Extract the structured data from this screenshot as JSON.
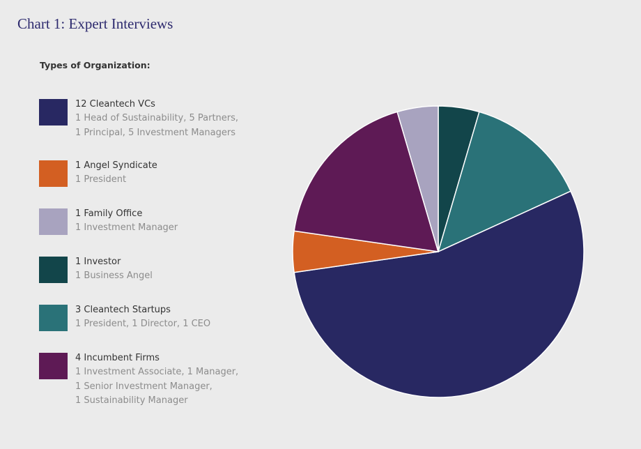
{
  "chart_data": {
    "type": "pie",
    "title": "Chart 1: Expert Interviews",
    "legend_title": "Types of Organization:",
    "legend_placement": "left",
    "start_angle_deg": 0,
    "direction": "clockwise",
    "slices": [
      {
        "label": "1 Investor",
        "value": 1,
        "details": [
          "1 Business Angel"
        ],
        "color": "#12454a"
      },
      {
        "label": "3 Cleantech Startups",
        "value": 3,
        "details": [
          "1 President, 1 Director, 1 CEO"
        ],
        "color": "#2a7278"
      },
      {
        "label": "12 Cleantech VCs",
        "value": 12,
        "details": [
          "1 Head of Sustainability, 5 Partners,",
          "1 Principal, 5 Investment Managers"
        ],
        "color": "#282862"
      },
      {
        "label": "1 Angel Syndicate",
        "value": 1,
        "details": [
          "1 President"
        ],
        "color": "#d35f22"
      },
      {
        "label": "4 Incumbent Firms",
        "value": 4,
        "details": [
          "1 Investment Associate, 1 Manager,",
          "1 Senior Investment Manager,",
          "1 Sustainability Manager"
        ],
        "color": "#5e1a55"
      },
      {
        "label": "1 Family Office",
        "value": 1,
        "details": [
          "1 Investment Manager"
        ],
        "color": "#a8a3bf"
      }
    ],
    "legend_order": [
      2,
      3,
      5,
      0,
      1,
      4
    ]
  }
}
